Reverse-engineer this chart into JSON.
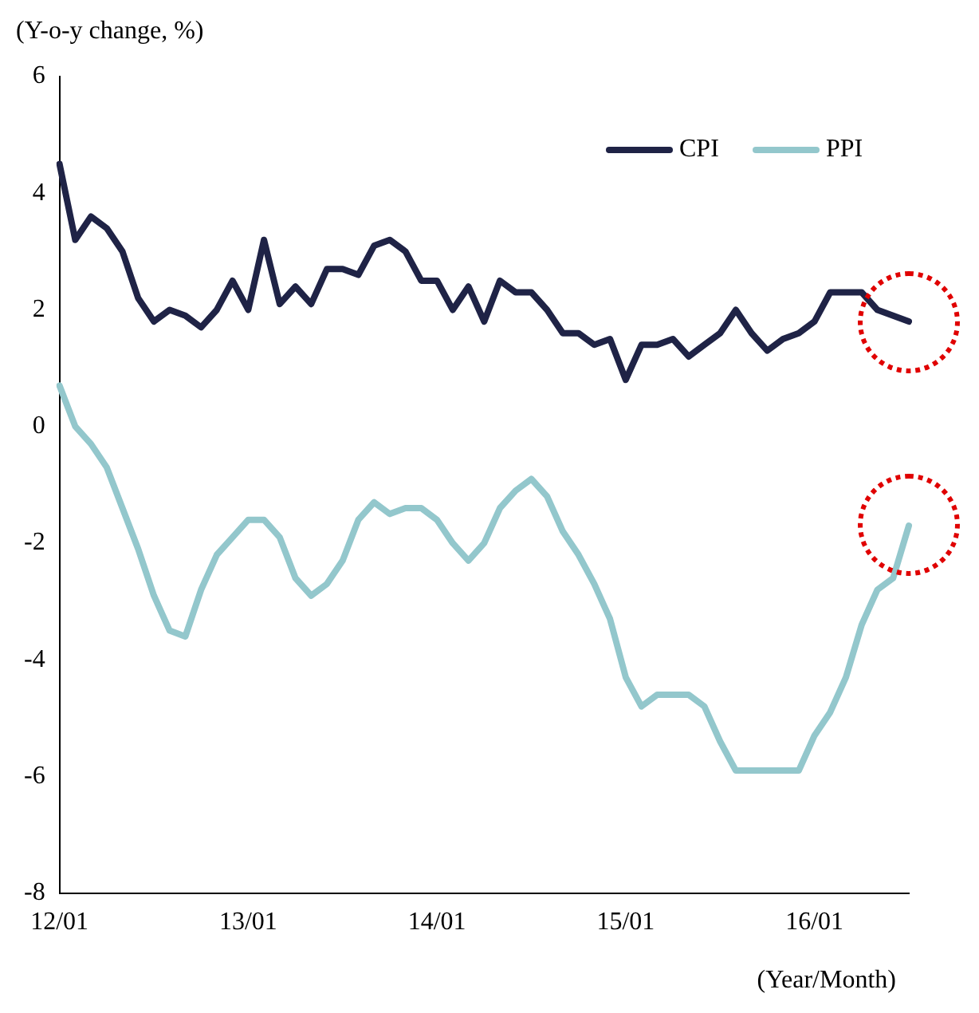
{
  "chart_data": {
    "type": "line",
    "ylabel": "(Y-o-y change, %)",
    "xlabel": "(Year/Month)",
    "categories": [
      "12/01",
      null,
      null,
      null,
      null,
      null,
      null,
      null,
      null,
      null,
      null,
      null,
      "13/01",
      null,
      null,
      null,
      null,
      null,
      null,
      null,
      null,
      null,
      null,
      null,
      "14/01",
      null,
      null,
      null,
      null,
      null,
      null,
      null,
      null,
      null,
      null,
      null,
      "15/01",
      null,
      null,
      null,
      null,
      null,
      null,
      null,
      null,
      null,
      null,
      null,
      "16/01",
      null,
      null,
      null,
      null,
      null,
      null
    ],
    "series": [
      {
        "name": "CPI",
        "color": "#1f2346",
        "values": [
          4.5,
          3.2,
          3.6,
          3.4,
          3.0,
          2.2,
          1.8,
          2.0,
          1.9,
          1.7,
          2.0,
          2.5,
          2.0,
          3.2,
          2.1,
          2.4,
          2.1,
          2.7,
          2.7,
          2.6,
          3.1,
          3.2,
          3.0,
          2.5,
          2.5,
          2.0,
          2.4,
          1.8,
          2.5,
          2.3,
          2.3,
          2.0,
          1.6,
          1.6,
          1.4,
          1.5,
          0.8,
          1.4,
          1.4,
          1.5,
          1.2,
          1.4,
          1.6,
          2.0,
          1.6,
          1.3,
          1.5,
          1.6,
          1.8,
          2.3,
          2.3,
          2.3,
          2.0,
          1.9,
          1.8
        ]
      },
      {
        "name": "PPI",
        "color": "#93c7cc",
        "values": [
          0.7,
          0.0,
          -0.3,
          -0.7,
          -1.4,
          -2.1,
          -2.9,
          -3.5,
          -3.6,
          -2.8,
          -2.2,
          -1.9,
          -1.6,
          -1.6,
          -1.9,
          -2.6,
          -2.9,
          -2.7,
          -2.3,
          -1.6,
          -1.3,
          -1.5,
          -1.4,
          -1.4,
          -1.6,
          -2.0,
          -2.3,
          -2.0,
          -1.4,
          -1.1,
          -0.9,
          -1.2,
          -1.8,
          -2.2,
          -2.7,
          -3.3,
          -4.3,
          -4.8,
          -4.6,
          -4.6,
          -4.6,
          -4.8,
          -5.4,
          -5.9,
          -5.9,
          -5.9,
          -5.9,
          -5.9,
          -5.3,
          -4.9,
          -4.3,
          -3.4,
          -2.8,
          -2.6,
          -1.7
        ]
      }
    ],
    "ylim": [
      -8,
      6
    ],
    "yticks": [
      -8,
      -6,
      -4,
      -2,
      0,
      2,
      4,
      6
    ],
    "grid": false,
    "legend": "top right",
    "marker": "none",
    "line_style": "solid"
  }
}
